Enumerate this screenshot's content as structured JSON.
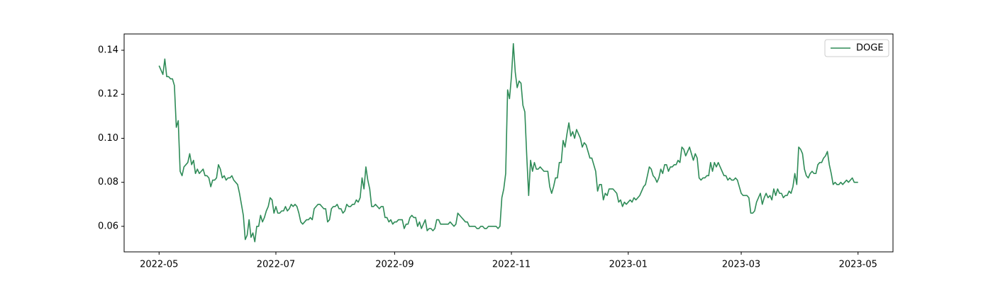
{
  "chart_data": {
    "type": "line",
    "categories": [
      "2022-05",
      null,
      null,
      null,
      null,
      null,
      null,
      null,
      null,
      null,
      null,
      null,
      null,
      null,
      null,
      null,
      null,
      null,
      null,
      null,
      null,
      null,
      null,
      null,
      null,
      null,
      null,
      null,
      null,
      null,
      null,
      null,
      null,
      null,
      null,
      null,
      null,
      null,
      null,
      null,
      null,
      null,
      null,
      null,
      null,
      null,
      null,
      null,
      null,
      null,
      null,
      null,
      null,
      null,
      null,
      null,
      null,
      null,
      null,
      null,
      null,
      "2022-07",
      null,
      null,
      null,
      null,
      null,
      null,
      null,
      null,
      null,
      null,
      null,
      null,
      null,
      null,
      null,
      null,
      null,
      null,
      null,
      null,
      null,
      null,
      null,
      null,
      null,
      null,
      null,
      null,
      null,
      null,
      null,
      null,
      null,
      null,
      null,
      null,
      null,
      null,
      null,
      null,
      null,
      null,
      null,
      null,
      null,
      null,
      null,
      null,
      null,
      null,
      null,
      null,
      null,
      null,
      null,
      null,
      null,
      null,
      null,
      null,
      null,
      "2022-09",
      null,
      null,
      null,
      null,
      null,
      null,
      null,
      null,
      null,
      null,
      null,
      null,
      null,
      null,
      null,
      null,
      null,
      null,
      null,
      null,
      null,
      null,
      null,
      null,
      null,
      null,
      null,
      null,
      null,
      null,
      null,
      null,
      null,
      null,
      null,
      null,
      null,
      null,
      null,
      null,
      null,
      null,
      null,
      null,
      null,
      null,
      null,
      null,
      null,
      null,
      null,
      null,
      null,
      null,
      null,
      null,
      null,
      null,
      null,
      null,
      "2022-11",
      null,
      null,
      null,
      null,
      null,
      null,
      null,
      null,
      null,
      null,
      null,
      null,
      null,
      null,
      null,
      null,
      null,
      null,
      null,
      null,
      null,
      null,
      null,
      null,
      null,
      null,
      null,
      null,
      null,
      null,
      null,
      null,
      null,
      null,
      null,
      null,
      null,
      null,
      null,
      null,
      null,
      null,
      null,
      null,
      null,
      null,
      null,
      null,
      null,
      null,
      null,
      null,
      null,
      null,
      null,
      null,
      null,
      null,
      null,
      null,
      "2023-01",
      null,
      null,
      null,
      null,
      null,
      null,
      null,
      null,
      null,
      null,
      null,
      null,
      null,
      null,
      null,
      null,
      null,
      null,
      null,
      null,
      null,
      null,
      null,
      null,
      null,
      null,
      null,
      null,
      null,
      null,
      null,
      null,
      null,
      null,
      null,
      null,
      null,
      null,
      null,
      null,
      null,
      null,
      null,
      null,
      null,
      null,
      null,
      null,
      null,
      null,
      null,
      null,
      null,
      null,
      null,
      null,
      null,
      null,
      "2023-03",
      null,
      null,
      null,
      null,
      null,
      null,
      null,
      null,
      null,
      null,
      null,
      null,
      null,
      null,
      null,
      null,
      null,
      null,
      null,
      null,
      null,
      null,
      null,
      null,
      null,
      null,
      null,
      null,
      null,
      null,
      null,
      null,
      null,
      null,
      null,
      null,
      null,
      null,
      null,
      null,
      null,
      null,
      null,
      null,
      null,
      null,
      null,
      null,
      null,
      null,
      null,
      null,
      null,
      null,
      null,
      null,
      null,
      null,
      null,
      null,
      "2023-05"
    ],
    "series": [
      {
        "name": "DOGE",
        "color": "#2e8b57",
        "values": [
          0.133,
          0.131,
          0.129,
          0.136,
          0.128,
          0.128,
          0.127,
          0.127,
          0.124,
          0.105,
          0.108,
          0.085,
          0.083,
          0.087,
          0.088,
          0.089,
          0.093,
          0.088,
          0.09,
          0.084,
          0.086,
          0.084,
          0.085,
          0.086,
          0.083,
          0.083,
          0.082,
          0.078,
          0.081,
          0.081,
          0.082,
          0.088,
          0.086,
          0.082,
          0.083,
          0.081,
          0.082,
          0.082,
          0.083,
          0.081,
          0.08,
          0.079,
          0.075,
          0.07,
          0.065,
          0.054,
          0.056,
          0.063,
          0.055,
          0.057,
          0.053,
          0.06,
          0.06,
          0.065,
          0.062,
          0.064,
          0.067,
          0.069,
          0.073,
          0.072,
          0.066,
          0.069,
          0.066,
          0.066,
          0.067,
          0.067,
          0.069,
          0.067,
          0.068,
          0.07,
          0.069,
          0.07,
          0.069,
          0.066,
          0.062,
          0.061,
          0.062,
          0.063,
          0.063,
          0.064,
          0.063,
          0.068,
          0.069,
          0.07,
          0.07,
          0.069,
          0.068,
          0.068,
          0.062,
          0.063,
          0.068,
          0.069,
          0.069,
          0.07,
          0.068,
          0.068,
          0.066,
          0.067,
          0.07,
          0.069,
          0.069,
          0.07,
          0.07,
          0.072,
          0.071,
          0.073,
          0.082,
          0.077,
          0.087,
          0.081,
          0.077,
          0.069,
          0.069,
          0.07,
          0.069,
          0.068,
          0.069,
          0.069,
          0.064,
          0.064,
          0.062,
          0.063,
          0.061,
          0.062,
          0.062,
          0.063,
          0.063,
          0.063,
          0.059,
          0.061,
          0.061,
          0.064,
          0.065,
          0.064,
          0.064,
          0.06,
          0.062,
          0.059,
          0.061,
          0.063,
          0.058,
          0.059,
          0.059,
          0.058,
          0.059,
          0.063,
          0.063,
          0.061,
          0.061,
          0.061,
          0.061,
          0.061,
          0.062,
          0.061,
          0.06,
          0.061,
          0.066,
          0.065,
          0.064,
          0.063,
          0.062,
          0.062,
          0.06,
          0.06,
          0.06,
          0.06,
          0.059,
          0.059,
          0.06,
          0.06,
          0.059,
          0.059,
          0.06,
          0.06,
          0.06,
          0.06,
          0.06,
          0.059,
          0.06,
          0.073,
          0.077,
          0.084,
          0.122,
          0.118,
          0.128,
          0.143,
          0.13,
          0.123,
          0.126,
          0.125,
          0.115,
          0.112,
          0.092,
          0.074,
          0.09,
          0.085,
          0.089,
          0.086,
          0.086,
          0.087,
          0.086,
          0.085,
          0.085,
          0.085,
          0.078,
          0.075,
          0.078,
          0.082,
          0.082,
          0.089,
          0.089,
          0.099,
          0.096,
          0.102,
          0.107,
          0.101,
          0.103,
          0.1,
          0.104,
          0.102,
          0.1,
          0.096,
          0.098,
          0.097,
          0.094,
          0.091,
          0.091,
          0.088,
          0.085,
          0.076,
          0.079,
          0.079,
          0.072,
          0.075,
          0.074,
          0.077,
          0.077,
          0.077,
          0.076,
          0.075,
          0.071,
          0.072,
          0.069,
          0.071,
          0.07,
          0.071,
          0.072,
          0.071,
          0.073,
          0.072,
          0.073,
          0.074,
          0.076,
          0.078,
          0.079,
          0.083,
          0.087,
          0.086,
          0.083,
          0.082,
          0.08,
          0.082,
          0.086,
          0.084,
          0.088,
          0.088,
          0.085,
          0.087,
          0.087,
          0.088,
          0.088,
          0.09,
          0.089,
          0.096,
          0.095,
          0.092,
          0.094,
          0.096,
          0.093,
          0.09,
          0.093,
          0.091,
          0.082,
          0.081,
          0.082,
          0.082,
          0.083,
          0.083,
          0.089,
          0.085,
          0.089,
          0.087,
          0.089,
          0.087,
          0.085,
          0.083,
          0.083,
          0.081,
          0.082,
          0.081,
          0.081,
          0.082,
          0.081,
          0.078,
          0.075,
          0.074,
          0.074,
          0.074,
          0.073,
          0.066,
          0.066,
          0.067,
          0.071,
          0.073,
          0.075,
          0.07,
          0.073,
          0.075,
          0.073,
          0.074,
          0.072,
          0.077,
          0.074,
          0.077,
          0.075,
          0.075,
          0.073,
          0.074,
          0.074,
          0.076,
          0.075,
          0.078,
          0.084,
          0.079,
          0.096,
          0.095,
          0.093,
          0.086,
          0.083,
          0.082,
          0.084,
          0.085,
          0.084,
          0.084,
          0.088,
          0.089,
          0.089,
          0.091,
          0.092,
          0.094,
          0.088,
          0.084,
          0.079,
          0.08,
          0.079,
          0.079,
          0.08,
          0.079,
          0.08,
          0.081,
          0.08,
          0.081,
          0.082,
          0.08,
          0.08,
          0.08
        ]
      }
    ],
    "ylim": [
      0.0484,
      0.1474
    ],
    "yticks": [
      0.06,
      0.08,
      0.1,
      0.12,
      0.14
    ],
    "legend": "upper right"
  }
}
